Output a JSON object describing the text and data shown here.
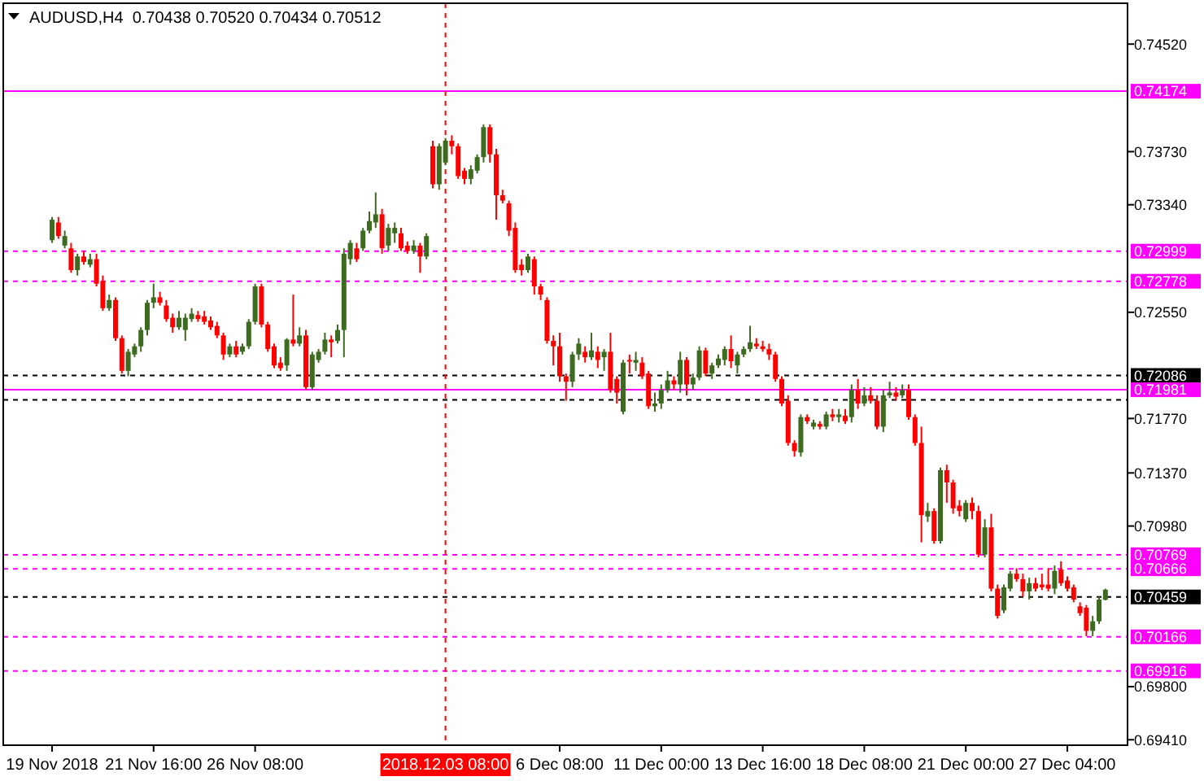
{
  "chart_data": {
    "type": "candlestick",
    "title": "AUDUSD,H4  0.70438 0.70520 0.70434 0.70512",
    "categories": [
      "19 Nov 2018",
      null,
      null,
      null,
      null,
      null,
      null,
      null,
      null,
      null,
      null,
      null,
      null,
      null,
      null,
      null,
      "21 Nov 16:00",
      null,
      null,
      null,
      null,
      null,
      null,
      null,
      null,
      null,
      null,
      null,
      null,
      null,
      null,
      null,
      "26 Nov 08:00",
      null,
      null,
      null,
      null,
      null,
      null,
      null,
      null,
      null,
      null,
      null,
      null,
      null,
      null,
      null,
      null,
      null,
      null,
      null,
      null,
      null,
      null,
      null,
      null,
      null,
      null,
      null,
      null,
      null,
      "2018.12.03 08:00",
      null,
      null,
      null,
      null,
      null,
      null,
      null,
      null,
      null,
      null,
      null,
      null,
      null,
      null,
      null,
      null,
      null,
      "6 Dec 08:00",
      null,
      null,
      null,
      null,
      null,
      null,
      null,
      null,
      null,
      null,
      null,
      null,
      null,
      null,
      null,
      "11 Dec 00:00",
      null,
      null,
      null,
      null,
      null,
      null,
      null,
      null,
      null,
      null,
      null,
      null,
      null,
      null,
      null,
      "13 Dec 16:00",
      null,
      null,
      null,
      null,
      null,
      null,
      null,
      null,
      null,
      null,
      null,
      null,
      null,
      null,
      null,
      "18 Dec 08:00",
      null,
      null,
      null,
      null,
      null,
      null,
      null,
      null,
      null,
      null,
      null,
      null,
      null,
      null,
      null,
      "21 Dec 00:00",
      null,
      null,
      null,
      null,
      null,
      null,
      null,
      null,
      null,
      null,
      null,
      null,
      null,
      null,
      null,
      "27 Dec 04:00",
      null,
      null,
      null,
      null,
      null,
      null
    ],
    "ohlc": [
      [
        0.7308,
        0.7325,
        0.7306,
        0.7323
      ],
      [
        0.7321,
        0.7325,
        0.7309,
        0.7311
      ],
      [
        0.7304,
        0.7315,
        0.7302,
        0.7311
      ],
      [
        0.7302,
        0.7306,
        0.7284,
        0.7286
      ],
      [
        0.7286,
        0.7298,
        0.7282,
        0.7296
      ],
      [
        0.7296,
        0.73,
        0.729,
        0.7292
      ],
      [
        0.729,
        0.7298,
        0.7288,
        0.7294
      ],
      [
        0.7294,
        0.7298,
        0.7274,
        0.7276
      ],
      [
        0.7278,
        0.7282,
        0.7256,
        0.7258
      ],
      [
        0.7258,
        0.7268,
        0.7256,
        0.7264
      ],
      [
        0.7264,
        0.7266,
        0.7234,
        0.7236
      ],
      [
        0.7236,
        0.7238,
        0.721,
        0.7212
      ],
      [
        0.7212,
        0.7228,
        0.7208,
        0.7226
      ],
      [
        0.7224,
        0.7232,
        0.7222,
        0.723
      ],
      [
        0.723,
        0.7244,
        0.7226,
        0.7242
      ],
      [
        0.7242,
        0.7264,
        0.7238,
        0.7262
      ],
      [
        0.7262,
        0.7276,
        0.7258,
        0.7266
      ],
      [
        0.7266,
        0.727,
        0.726,
        0.7262
      ],
      [
        0.726,
        0.7264,
        0.7248,
        0.725
      ],
      [
        0.7251,
        0.7254,
        0.724,
        0.7244
      ],
      [
        0.7244,
        0.7256,
        0.7242,
        0.7251
      ],
      [
        0.7242,
        0.7254,
        0.7234,
        0.7251
      ],
      [
        0.725,
        0.7258,
        0.7248,
        0.7254
      ],
      [
        0.7253,
        0.7256,
        0.7248,
        0.725
      ],
      [
        0.7252,
        0.7256,
        0.7246,
        0.7248
      ],
      [
        0.7249,
        0.7252,
        0.7242,
        0.7244
      ],
      [
        0.7245,
        0.7248,
        0.7236,
        0.7238
      ],
      [
        0.7238,
        0.724,
        0.722,
        0.7224
      ],
      [
        0.7224,
        0.7232,
        0.7222,
        0.723
      ],
      [
        0.723,
        0.7234,
        0.7222,
        0.7224
      ],
      [
        0.7226,
        0.7232,
        0.7224,
        0.723
      ],
      [
        0.723,
        0.725,
        0.7228,
        0.7248
      ],
      [
        0.7248,
        0.7276,
        0.7246,
        0.7274
      ],
      [
        0.7274,
        0.7276,
        0.7244,
        0.7246
      ],
      [
        0.7246,
        0.7248,
        0.7226,
        0.7228
      ],
      [
        0.723,
        0.7232,
        0.7214,
        0.7216
      ],
      [
        0.7218,
        0.7222,
        0.7212,
        0.7214
      ],
      [
        0.7216,
        0.7236,
        0.7212,
        0.7235
      ],
      [
        0.7235,
        0.7268,
        0.723,
        0.7232
      ],
      [
        0.7232,
        0.7244,
        0.723,
        0.7238
      ],
      [
        0.7238,
        0.7242,
        0.7198,
        0.72
      ],
      [
        0.72,
        0.7226,
        0.7198,
        0.7224
      ],
      [
        0.722,
        0.7228,
        0.7218,
        0.7226
      ],
      [
        0.7226,
        0.724,
        0.7224,
        0.7235
      ],
      [
        0.7235,
        0.7238,
        0.7222,
        0.7233
      ],
      [
        0.7234,
        0.7246,
        0.7232,
        0.7242
      ],
      [
        0.7242,
        0.7302,
        0.7222,
        0.7298
      ],
      [
        0.7294,
        0.7308,
        0.729,
        0.7306
      ],
      [
        0.7302,
        0.7306,
        0.7292,
        0.7294
      ],
      [
        0.7302,
        0.7317,
        0.73,
        0.7315
      ],
      [
        0.7315,
        0.7329,
        0.7313,
        0.7322
      ],
      [
        0.7321,
        0.7343,
        0.7317,
        0.7327
      ],
      [
        0.7327,
        0.7331,
        0.7298,
        0.7302
      ],
      [
        0.7304,
        0.732,
        0.73,
        0.7317
      ],
      [
        0.7313,
        0.7321,
        0.7306,
        0.7317
      ],
      [
        0.7313,
        0.7317,
        0.73,
        0.7302
      ],
      [
        0.7304,
        0.7307,
        0.7298,
        0.73
      ],
      [
        0.73,
        0.7308,
        0.7298,
        0.7304
      ],
      [
        0.7304,
        0.7306,
        0.7284,
        0.7296
      ],
      [
        0.7296,
        0.7313,
        0.7294,
        0.7311
      ],
      [
        0.7377,
        0.7381,
        0.7346,
        0.7349
      ],
      [
        0.7349,
        0.7379,
        0.7345,
        0.7377
      ],
      [
        0.7365,
        0.7383,
        0.7363,
        0.7381
      ],
      [
        0.7381,
        0.7385,
        0.7371,
        0.7377
      ],
      [
        0.7377,
        0.7379,
        0.7353,
        0.7355
      ],
      [
        0.7359,
        0.7361,
        0.7349,
        0.7353
      ],
      [
        0.7353,
        0.7363,
        0.7349,
        0.736
      ],
      [
        0.7359,
        0.7371,
        0.7357,
        0.7369
      ],
      [
        0.7369,
        0.7393,
        0.7365,
        0.7391
      ],
      [
        0.7391,
        0.7393,
        0.7365,
        0.7371
      ],
      [
        0.7371,
        0.7375,
        0.7323,
        0.7341
      ],
      [
        0.7341,
        0.7345,
        0.7335,
        0.7337
      ],
      [
        0.7335,
        0.7337,
        0.7311,
        0.7315
      ],
      [
        0.7317,
        0.7321,
        0.7284,
        0.7286
      ],
      [
        0.729,
        0.7294,
        0.7282,
        0.7286
      ],
      [
        0.7286,
        0.7298,
        0.7284,
        0.7296
      ],
      [
        0.7294,
        0.7296,
        0.7268,
        0.7274
      ],
      [
        0.7274,
        0.7276,
        0.7264,
        0.7268
      ],
      [
        0.7264,
        0.7266,
        0.7232,
        0.7234
      ],
      [
        0.7234,
        0.7238,
        0.7216,
        0.723
      ],
      [
        0.723,
        0.724,
        0.7204,
        0.7208
      ],
      [
        0.7208,
        0.721,
        0.719,
        0.7204
      ],
      [
        0.7204,
        0.7226,
        0.72,
        0.7224
      ],
      [
        0.7224,
        0.7236,
        0.722,
        0.7232
      ],
      [
        0.7226,
        0.723,
        0.7218,
        0.7222
      ],
      [
        0.7222,
        0.724,
        0.722,
        0.7227
      ],
      [
        0.7226,
        0.723,
        0.7214,
        0.722
      ],
      [
        0.7222,
        0.7228,
        0.7212,
        0.7226
      ],
      [
        0.7226,
        0.724,
        0.7196,
        0.7198
      ],
      [
        0.7206,
        0.7208,
        0.7188,
        0.7196
      ],
      [
        0.7182,
        0.722,
        0.718,
        0.7218
      ],
      [
        0.722,
        0.7224,
        0.721,
        0.7219
      ],
      [
        0.7218,
        0.7226,
        0.7212,
        0.722
      ],
      [
        0.7218,
        0.7222,
        0.7206,
        0.7208
      ],
      [
        0.721,
        0.7212,
        0.7184,
        0.7186
      ],
      [
        0.7186,
        0.7196,
        0.7182,
        0.7188
      ],
      [
        0.7188,
        0.7202,
        0.7184,
        0.7198
      ],
      [
        0.7198,
        0.7212,
        0.7196,
        0.7205
      ],
      [
        0.7205,
        0.7208,
        0.7198,
        0.7202
      ],
      [
        0.7202,
        0.7226,
        0.7196,
        0.722
      ],
      [
        0.722,
        0.7222,
        0.7194,
        0.7202
      ],
      [
        0.7202,
        0.721,
        0.7198,
        0.7207
      ],
      [
        0.7207,
        0.723,
        0.7205,
        0.7227
      ],
      [
        0.7227,
        0.7229,
        0.7208,
        0.721
      ],
      [
        0.721,
        0.7218,
        0.7206,
        0.7216
      ],
      [
        0.7216,
        0.7224,
        0.7214,
        0.7221
      ],
      [
        0.722,
        0.723,
        0.7216,
        0.7228
      ],
      [
        0.7228,
        0.7238,
        0.7214,
        0.7219
      ],
      [
        0.7216,
        0.7226,
        0.721,
        0.7224
      ],
      [
        0.7224,
        0.723,
        0.7222,
        0.7228
      ],
      [
        0.7228,
        0.7245,
        0.7226,
        0.7233
      ],
      [
        0.7232,
        0.7236,
        0.7228,
        0.723
      ],
      [
        0.723,
        0.7234,
        0.7226,
        0.7228
      ],
      [
        0.7228,
        0.7232,
        0.722,
        0.7224
      ],
      [
        0.7224,
        0.7226,
        0.7204,
        0.7206
      ],
      [
        0.7206,
        0.7208,
        0.7186,
        0.7188
      ],
      [
        0.719,
        0.7194,
        0.7157,
        0.7159
      ],
      [
        0.7159,
        0.7161,
        0.7149,
        0.7153
      ],
      [
        0.7152,
        0.718,
        0.7149,
        0.7178
      ],
      [
        0.7178,
        0.718,
        0.7173,
        0.7175
      ],
      [
        0.7171,
        0.7176,
        0.7169,
        0.7174
      ],
      [
        0.7173,
        0.7175,
        0.7169,
        0.7171
      ],
      [
        0.7171,
        0.7182,
        0.7169,
        0.718
      ],
      [
        0.718,
        0.7184,
        0.7175,
        0.7178
      ],
      [
        0.7178,
        0.7184,
        0.7174,
        0.718
      ],
      [
        0.7179,
        0.7184,
        0.7173,
        0.7175
      ],
      [
        0.7178,
        0.7202,
        0.7174,
        0.7198
      ],
      [
        0.7198,
        0.7206,
        0.7184,
        0.7188
      ],
      [
        0.7188,
        0.72,
        0.7186,
        0.7194
      ],
      [
        0.7194,
        0.72,
        0.7188,
        0.719
      ],
      [
        0.719,
        0.7194,
        0.7169,
        0.7171
      ],
      [
        0.7171,
        0.7198,
        0.7167,
        0.7194
      ],
      [
        0.7194,
        0.7204,
        0.7192,
        0.7196
      ],
      [
        0.7196,
        0.72,
        0.719,
        0.7193
      ],
      [
        0.7194,
        0.7202,
        0.7192,
        0.7198
      ],
      [
        0.7198,
        0.7202,
        0.7176,
        0.7178
      ],
      [
        0.7178,
        0.718,
        0.7157,
        0.7159
      ],
      [
        0.7159,
        0.7171,
        0.7086,
        0.7106
      ],
      [
        0.7105,
        0.7115,
        0.7101,
        0.7109
      ],
      [
        0.7109,
        0.7111,
        0.7085,
        0.7087
      ],
      [
        0.7087,
        0.7141,
        0.7085,
        0.7139
      ],
      [
        0.7139,
        0.7143,
        0.7115,
        0.713
      ],
      [
        0.713,
        0.7132,
        0.7107,
        0.7111
      ],
      [
        0.7113,
        0.7117,
        0.7105,
        0.7109
      ],
      [
        0.7103,
        0.7117,
        0.7101,
        0.7115
      ],
      [
        0.7115,
        0.7119,
        0.7103,
        0.7109
      ],
      [
        0.7109,
        0.7113,
        0.7075,
        0.7077
      ],
      [
        0.7077,
        0.7103,
        0.7075,
        0.7097
      ],
      [
        0.7097,
        0.7107,
        0.705,
        0.7052
      ],
      [
        0.7052,
        0.7055,
        0.703,
        0.7032
      ],
      [
        0.7036,
        0.7055,
        0.7034,
        0.7053
      ],
      [
        0.7052,
        0.7065,
        0.705,
        0.7063
      ],
      [
        0.7063,
        0.7067,
        0.7057,
        0.7059
      ],
      [
        0.7059,
        0.7063,
        0.7046,
        0.705
      ],
      [
        0.705,
        0.706,
        0.7044,
        0.7056
      ],
      [
        0.7056,
        0.706,
        0.705,
        0.7052
      ],
      [
        0.7055,
        0.7063,
        0.7051,
        0.7053
      ],
      [
        0.7055,
        0.7067,
        0.705,
        0.7052
      ],
      [
        0.7052,
        0.7069,
        0.7048,
        0.7065
      ],
      [
        0.7066,
        0.7072,
        0.7054,
        0.7056
      ],
      [
        0.7058,
        0.7061,
        0.705,
        0.7052
      ],
      [
        0.7053,
        0.7055,
        0.7042,
        0.7044
      ],
      [
        0.7039,
        0.7042,
        0.7032,
        0.7034
      ],
      [
        0.7038,
        0.704,
        0.7017,
        0.7021
      ],
      [
        0.7021,
        0.7032,
        0.7017,
        0.7028
      ],
      [
        0.7028,
        0.7046,
        0.7026,
        0.7044
      ],
      [
        0.70438,
        0.7052,
        0.70434,
        0.70512
      ]
    ],
    "ylim": [
      0.6937,
      0.7482
    ],
    "yticks": [
      {
        "value": 0.6941,
        "label": "0.69410"
      },
      {
        "value": 0.698,
        "label": "0.69800"
      },
      {
        "value": 0.7098,
        "label": "0.70980"
      },
      {
        "value": 0.7137,
        "label": "0.71370"
      },
      {
        "value": 0.7177,
        "label": "0.71770"
      },
      {
        "value": 0.7255,
        "label": "0.72550"
      },
      {
        "value": 0.7334,
        "label": "0.73340"
      },
      {
        "value": 0.7373,
        "label": "0.73730"
      },
      {
        "value": 0.7452,
        "label": "0.74520"
      }
    ],
    "ref_lines": [
      {
        "axis": "y",
        "value": 0.74174,
        "label": "0.74174",
        "color": "#ff00ff",
        "line_style": "solid"
      },
      {
        "axis": "y",
        "value": 0.72999,
        "label": "0.72999",
        "color": "#ff00ff",
        "line_style": "dashed"
      },
      {
        "axis": "y",
        "value": 0.72778,
        "label": "0.72778",
        "color": "#ff00ff",
        "line_style": "dashed"
      },
      {
        "axis": "y",
        "value": 0.72086,
        "label": "0.72086",
        "color": "#000000",
        "line_style": "dashed"
      },
      {
        "axis": "y",
        "value": 0.71981,
        "label": "0.71981",
        "color": "#ff00ff",
        "line_style": "solid"
      },
      {
        "axis": "y",
        "value": 0.71907,
        "label": null,
        "color": "#000000",
        "line_style": "dashed"
      },
      {
        "axis": "y",
        "value": 0.70769,
        "label": "0.70769",
        "color": "#ff00ff",
        "line_style": "dashed"
      },
      {
        "axis": "y",
        "value": 0.70666,
        "label": "0.70666",
        "color": "#ff00ff",
        "line_style": "dashed"
      },
      {
        "axis": "y",
        "value": 0.70459,
        "label": "0.70459",
        "color": "#000000",
        "line_style": "dashed"
      },
      {
        "axis": "y",
        "value": 0.70166,
        "label": "0.70166",
        "color": "#ff00ff",
        "line_style": "dashed"
      },
      {
        "axis": "y",
        "value": 0.69916,
        "label": "0.69916",
        "color": "#ff00ff",
        "line_style": "dashed"
      },
      {
        "axis": "x",
        "value": "2018.12.03 08:00",
        "color": "#ff0000",
        "line_style": "dashed"
      }
    ]
  }
}
